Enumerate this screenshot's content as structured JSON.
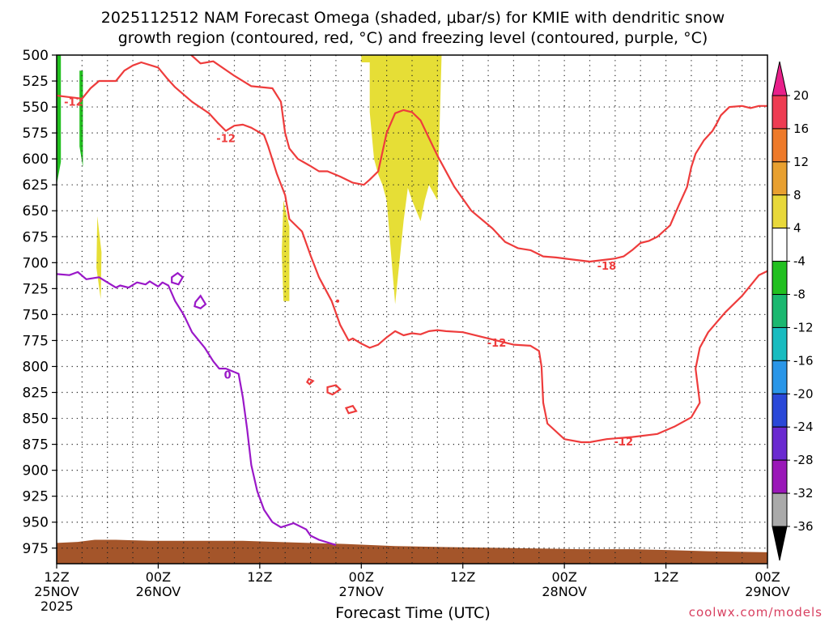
{
  "chart_data": {
    "type": "contour-timeheight",
    "title_line1": "2025112512 NAM Forecast Omega (shaded, μbar/s) for KMIE with dendritic snow",
    "title_line2": "growth region (contoured, red, °C) and freezing level (contoured, purple, °C)",
    "xlabel": "Forecast Time (UTC)",
    "credit": "coolwx.com/models",
    "x_range_hours": [
      0,
      84
    ],
    "y_range_hpa": [
      500,
      990
    ],
    "y_ticks": [
      "500",
      "525",
      "550",
      "575",
      "600",
      "625",
      "650",
      "675",
      "700",
      "725",
      "750",
      "775",
      "800",
      "825",
      "850",
      "875",
      "900",
      "925",
      "950",
      "975"
    ],
    "y_tick_values": [
      500,
      525,
      550,
      575,
      600,
      625,
      650,
      675,
      700,
      725,
      750,
      775,
      800,
      825,
      850,
      875,
      900,
      925,
      950,
      975
    ],
    "x_ticks": [
      {
        "hour": 0,
        "l1": "12Z",
        "l2": "25NOV",
        "l3": "2025"
      },
      {
        "hour": 12,
        "l1": "00Z",
        "l2": "26NOV",
        "l3": ""
      },
      {
        "hour": 24,
        "l1": "12Z",
        "l2": "",
        "l3": ""
      },
      {
        "hour": 36,
        "l1": "00Z",
        "l2": "27NOV",
        "l3": ""
      },
      {
        "hour": 48,
        "l1": "12Z",
        "l2": "",
        "l3": ""
      },
      {
        "hour": 60,
        "l1": "00Z",
        "l2": "28NOV",
        "l3": ""
      },
      {
        "hour": 72,
        "l1": "12Z",
        "l2": "",
        "l3": ""
      },
      {
        "hour": 84,
        "l1": "00Z",
        "l2": "29NOV",
        "l3": ""
      }
    ],
    "colorbar": {
      "labels": [
        "20",
        "16",
        "12",
        "8",
        "4",
        "-4",
        "-8",
        "-12",
        "-16",
        "-20",
        "-24",
        "-28",
        "-32",
        "-36"
      ],
      "colors": [
        "#ee3c52",
        "#ee7a2a",
        "#e8a030",
        "#e8d83a",
        "#ffffff",
        "#22c020",
        "#1bb870",
        "#19bcc0",
        "#2a96e8",
        "#2a48d8",
        "#6a2ad0",
        "#9a18b8",
        "#aaaaaa"
      ],
      "top_arrow_color": "#e8208a",
      "bottom_arrow_color": "#000000"
    },
    "contour_labels": {
      "dgz_upper": "-12",
      "dgz_upper_b": "-12",
      "dgz_upper_c": "-18",
      "dgz_lower_a": "-12",
      "dgz_lower_b": "-12",
      "freezing": "0"
    },
    "series": [
      {
        "name": "freezing level 0C",
        "color": "#9a18c8",
        "points": [
          [
            0,
            711
          ],
          [
            1.5,
            712
          ],
          [
            2.5,
            709
          ],
          [
            3.5,
            716
          ],
          [
            5,
            714
          ],
          [
            6,
            719
          ],
          [
            7,
            724
          ],
          [
            7.5,
            722
          ],
          [
            8.5,
            724
          ],
          [
            9.5,
            719
          ],
          [
            10.5,
            721
          ],
          [
            11,
            718
          ],
          [
            12,
            723
          ],
          [
            12.5,
            719
          ],
          [
            13.2,
            722
          ],
          [
            14,
            737
          ],
          [
            15,
            750
          ],
          [
            16,
            767
          ],
          [
            17.5,
            782
          ],
          [
            18.5,
            795
          ],
          [
            19.2,
            802
          ],
          [
            20,
            802
          ],
          [
            21.5,
            807
          ],
          [
            22,
            830
          ],
          [
            22.5,
            860
          ],
          [
            23,
            895
          ],
          [
            23.7,
            920
          ],
          [
            24.5,
            938
          ],
          [
            25.5,
            950
          ],
          [
            26.5,
            955
          ],
          [
            28,
            951
          ],
          [
            29.5,
            957
          ],
          [
            30,
            963
          ],
          [
            31,
            967
          ],
          [
            33,
            972
          ]
        ]
      },
      {
        "name": "DGZ -12C upper",
        "color": "#ee3c3c",
        "points": [
          [
            15.5,
            497
          ],
          [
            17,
            508
          ],
          [
            18.5,
            506
          ],
          [
            21,
            520
          ],
          [
            23,
            530
          ],
          [
            25.5,
            532
          ],
          [
            26.5,
            545
          ],
          [
            27,
            575
          ],
          [
            27.5,
            590
          ],
          [
            28.5,
            600
          ],
          [
            30,
            607
          ],
          [
            31,
            612
          ],
          [
            32,
            612
          ],
          [
            33.5,
            617
          ],
          [
            35,
            623
          ],
          [
            36.3,
            625
          ],
          [
            37,
            620
          ],
          [
            38,
            612
          ],
          [
            39,
            575
          ],
          [
            40,
            556
          ],
          [
            41,
            553
          ],
          [
            42,
            555
          ],
          [
            43,
            563
          ],
          [
            44,
            580
          ],
          [
            45,
            597
          ],
          [
            47,
            627
          ],
          [
            49,
            650
          ],
          [
            51.5,
            667
          ],
          [
            53,
            680
          ],
          [
            54.5,
            686
          ],
          [
            56,
            688
          ],
          [
            57.5,
            694
          ],
          [
            59,
            695
          ],
          [
            61,
            697
          ],
          [
            63,
            699
          ],
          [
            65,
            697
          ],
          [
            66,
            696
          ],
          [
            67,
            694
          ],
          [
            68,
            688
          ],
          [
            69,
            681
          ],
          [
            70,
            679
          ],
          [
            71,
            675
          ],
          [
            72.5,
            664
          ],
          [
            73.5,
            645
          ],
          [
            74.5,
            627
          ],
          [
            75,
            608
          ],
          [
            75.5,
            595
          ],
          [
            76.5,
            582
          ],
          [
            77.5,
            573
          ],
          [
            78,
            566
          ],
          [
            78.5,
            558
          ],
          [
            79.5,
            550
          ],
          [
            81,
            549
          ],
          [
            82,
            551
          ],
          [
            83,
            549
          ],
          [
            84,
            549
          ]
        ]
      },
      {
        "name": "DGZ -12C upper-left",
        "color": "#ee3c3c",
        "points": [
          [
            0,
            539
          ],
          [
            1,
            540
          ],
          [
            3,
            542
          ],
          [
            4,
            532
          ],
          [
            5,
            525
          ],
          [
            6,
            525
          ],
          [
            7,
            525
          ],
          [
            8,
            515
          ],
          [
            9,
            510
          ],
          [
            10,
            507
          ],
          [
            12,
            512
          ],
          [
            13,
            522
          ],
          [
            14,
            531
          ],
          [
            16,
            545
          ],
          [
            18,
            556
          ],
          [
            19,
            565
          ],
          [
            20,
            573
          ],
          [
            21,
            568
          ],
          [
            22,
            567
          ],
          [
            23,
            570
          ],
          [
            24.5,
            577
          ],
          [
            25,
            588
          ],
          [
            26,
            614
          ],
          [
            27,
            635
          ],
          [
            27.5,
            658
          ],
          [
            29,
            670
          ],
          [
            30,
            693
          ],
          [
            31,
            714
          ],
          [
            32.5,
            737
          ],
          [
            33.5,
            760
          ],
          [
            34.5,
            775
          ],
          [
            35,
            773
          ],
          [
            36,
            778
          ],
          [
            37,
            782
          ],
          [
            38,
            779
          ],
          [
            39,
            772
          ],
          [
            40,
            766
          ],
          [
            41,
            770
          ],
          [
            42,
            768
          ],
          [
            43,
            769
          ],
          [
            44,
            766
          ],
          [
            45,
            765
          ],
          [
            46,
            766
          ],
          [
            48,
            767
          ],
          [
            50,
            771
          ],
          [
            52,
            775
          ],
          [
            54,
            779
          ],
          [
            56,
            780
          ],
          [
            57,
            785
          ],
          [
            57.3,
            800
          ],
          [
            57.5,
            835
          ],
          [
            58,
            855
          ],
          [
            60,
            870
          ],
          [
            62,
            873
          ],
          [
            63,
            873
          ],
          [
            65,
            870
          ],
          [
            68,
            868
          ],
          [
            71,
            865
          ],
          [
            73,
            858
          ],
          [
            75,
            849
          ],
          [
            76,
            835
          ],
          [
            75.5,
            802
          ],
          [
            76,
            782
          ],
          [
            77,
            767
          ],
          [
            79,
            748
          ],
          [
            81,
            732
          ],
          [
            83,
            712
          ],
          [
            84,
            708
          ]
        ]
      }
    ],
    "omega_patches_positive": [
      {
        "color": "#e6de36",
        "points": [
          [
            36,
            497
          ],
          [
            36,
            507
          ],
          [
            37,
            507
          ],
          [
            37,
            555
          ],
          [
            37.5,
            600
          ],
          [
            38,
            615
          ],
          [
            38.5,
            625
          ],
          [
            39,
            640
          ],
          [
            39.5,
            690
          ],
          [
            40,
            740
          ],
          [
            41,
            660
          ],
          [
            41.5,
            628
          ],
          [
            42,
            640
          ],
          [
            42.5,
            650
          ],
          [
            43,
            660
          ],
          [
            43.5,
            640
          ],
          [
            44,
            625
          ],
          [
            45,
            640
          ],
          [
            45.5,
            497
          ]
        ]
      },
      {
        "color": "#e6de36",
        "points": [
          [
            26.8,
            640
          ],
          [
            27.5,
            665
          ],
          [
            27.5,
            737
          ],
          [
            26.8,
            737
          ],
          [
            26.6,
            690
          ]
        ]
      },
      {
        "color": "#e6de36",
        "points": [
          [
            4.8,
            655
          ],
          [
            5.3,
            690
          ],
          [
            5.2,
            735
          ],
          [
            4.7,
            705
          ]
        ]
      }
    ],
    "omega_patches_negative": [
      {
        "color": "#22c020",
        "points": [
          [
            0,
            497
          ],
          [
            0.5,
            497
          ],
          [
            0.5,
            603
          ],
          [
            0,
            625
          ]
        ]
      },
      {
        "color": "#22c020",
        "points": [
          [
            2.7,
            515
          ],
          [
            3.1,
            515
          ],
          [
            3.1,
            608
          ],
          [
            2.7,
            588
          ]
        ]
      }
    ],
    "terrain": {
      "color": "#a4552a",
      "top_points": [
        [
          0,
          970
        ],
        [
          2.5,
          969
        ],
        [
          4.5,
          967
        ],
        [
          7,
          967
        ],
        [
          11,
          968
        ],
        [
          16,
          968
        ],
        [
          22,
          968
        ],
        [
          26,
          969
        ],
        [
          30,
          970
        ],
        [
          34,
          971
        ],
        [
          40,
          973
        ],
        [
          46,
          974
        ],
        [
          54,
          975
        ],
        [
          62,
          976
        ],
        [
          68,
          976
        ],
        [
          72.5,
          977
        ],
        [
          77,
          978
        ],
        [
          84,
          979
        ]
      ]
    }
  }
}
